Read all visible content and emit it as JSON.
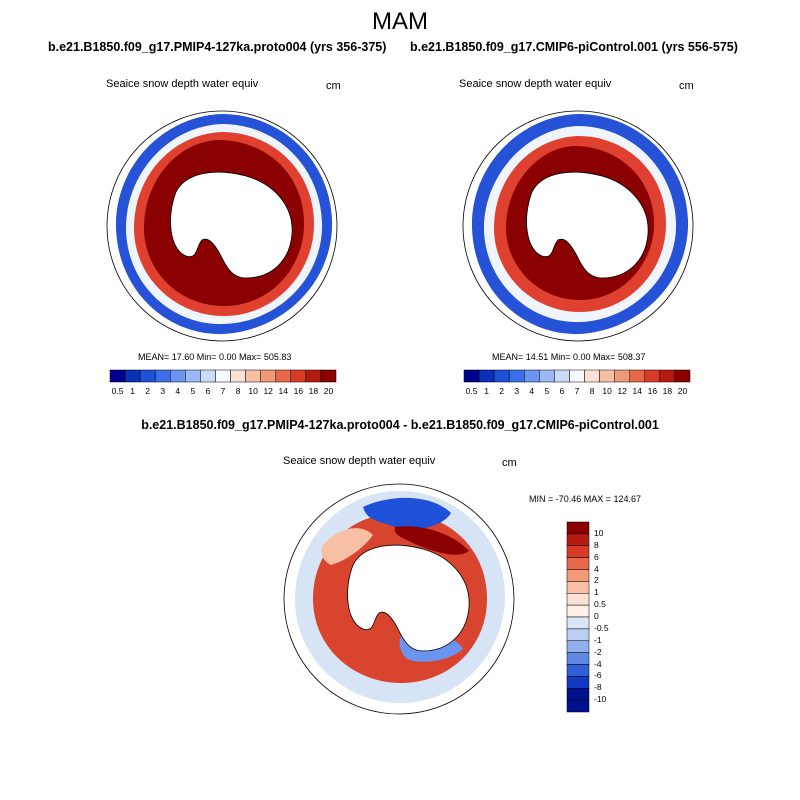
{
  "season": "MAM",
  "panels": [
    {
      "case_title": "b.e21.B1850.f09_g17.PMIP4-127ka.proto004 (yrs 356-375)",
      "variable": "Seaice snow depth water equiv",
      "units": "cm",
      "stats": "MEAN=  17.60  Min=    0.00  Max= 505.83"
    },
    {
      "case_title": "b.e21.B1850.f09_g17.CMIP6-piControl.001 (yrs 556-575)",
      "variable": "Seaice snow depth water equiv",
      "units": "cm",
      "stats": "MEAN=  14.51  Min=    0.00  Max= 508.37"
    }
  ],
  "colorbar_labels": [
    "0.5",
    "1",
    "2",
    "3",
    "4",
    "5",
    "6",
    "7",
    "8",
    "10",
    "12",
    "14",
    "16",
    "18",
    "20"
  ],
  "colorbar_colors": [
    "#00008f",
    "#0a2fb8",
    "#1e50d8",
    "#3a6fe8",
    "#6a94f0",
    "#9ab8f5",
    "#c9dbf8",
    "#f5f8fc",
    "#fbe2d4",
    "#f7bfa3",
    "#f19a78",
    "#e8664a",
    "#d93a26",
    "#b51a10",
    "#8b0000"
  ],
  "diff": {
    "title": "b.e21.B1850.f09_g17.PMIP4-127ka.proto004 - b.e21.B1850.f09_g17.CMIP6-piControl.001",
    "variable": "Seaice snow depth water equiv",
    "units": "cm",
    "minmax": "MIN = -70.46 MAX = 124.67",
    "colorbar_labels": [
      "10",
      "8",
      "6",
      "4",
      "2",
      "1",
      "0.5",
      "0",
      "-0.5",
      "-1",
      "-2",
      "-4",
      "-6",
      "-8",
      "-10"
    ],
    "colorbar_colors": [
      "#8b0000",
      "#b51a10",
      "#d93a26",
      "#e8664a",
      "#f19a78",
      "#f7bfa3",
      "#fbe2d4",
      "#fef0e6",
      "#dbe7f8",
      "#b9cef2",
      "#8fb0ec",
      "#5e88e2",
      "#3060d8",
      "#1038c0",
      "#00108f"
    ]
  }
}
